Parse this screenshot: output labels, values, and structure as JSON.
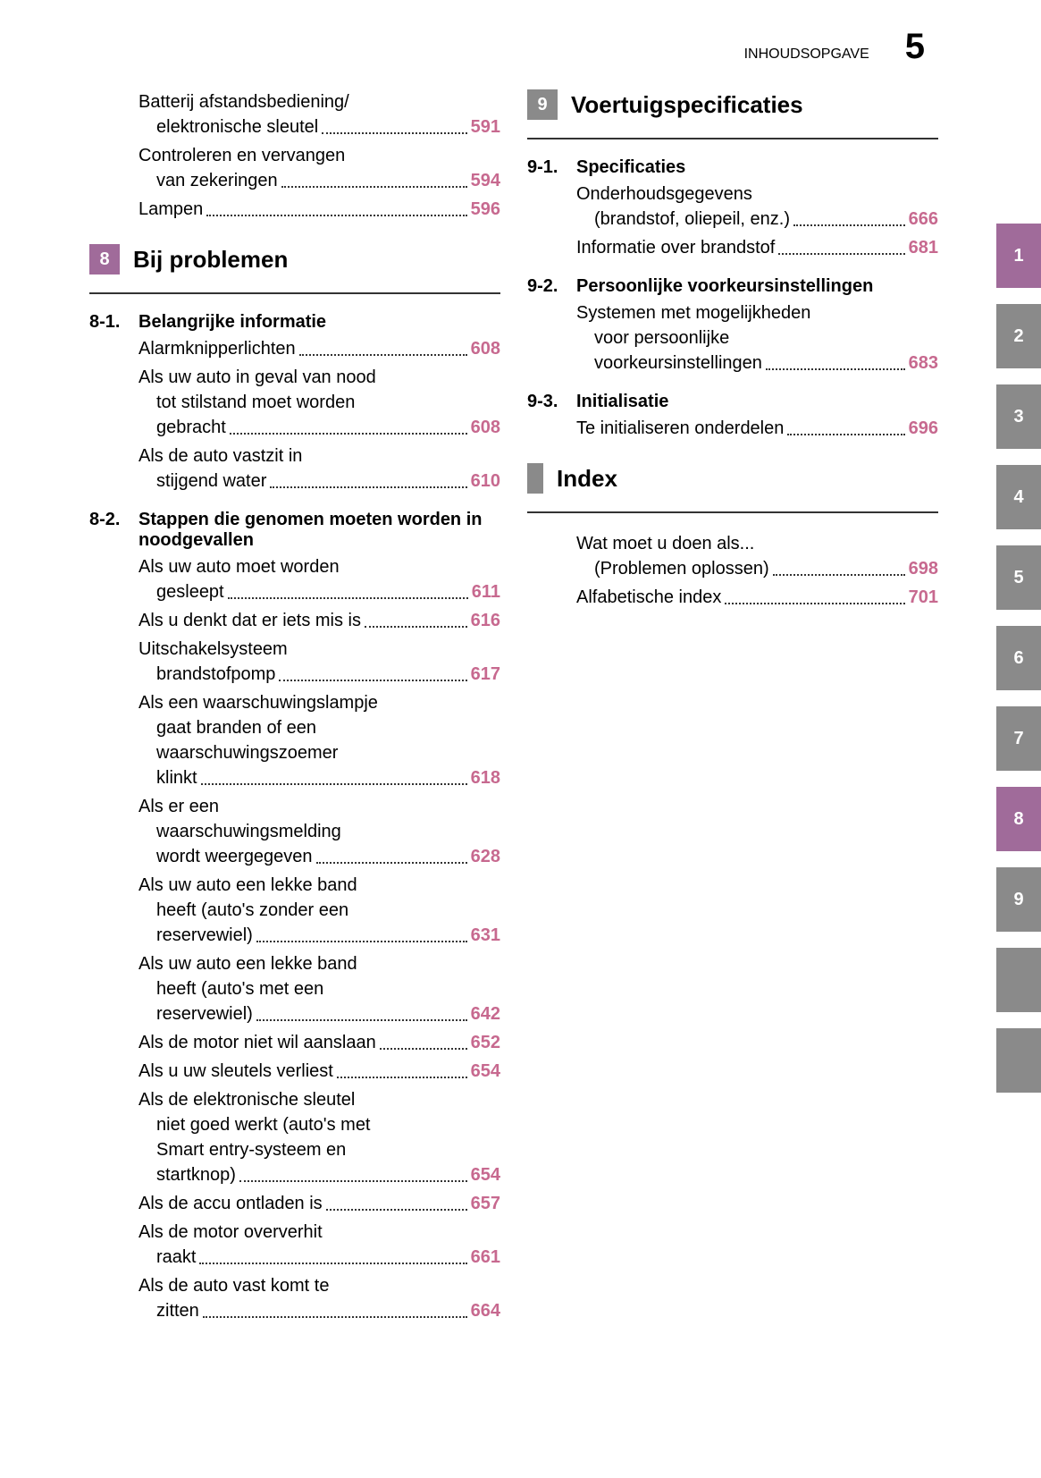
{
  "colors": {
    "purple": "#a06b9a",
    "gray": "#8a8a8a",
    "page_pink": "#c7698f",
    "text": "#222222"
  },
  "header": {
    "title": "INHOUDSOPGAVE",
    "page": "5"
  },
  "left": {
    "pre_entries": [
      {
        "lines": [
          "Batterij afstandsbediening/",
          "elektronische sleutel"
        ],
        "page": "591"
      },
      {
        "lines": [
          "Controleren en vervangen",
          "van zekeringen"
        ],
        "page": "594"
      },
      {
        "lines": [
          "Lampen"
        ],
        "page": "596"
      }
    ],
    "chapter8": {
      "num": "8",
      "title": "Bij problemen"
    },
    "s81": {
      "num": "8-1.",
      "title": "Belangrijke informatie",
      "entries": [
        {
          "lines": [
            "Alarmknipperlichten"
          ],
          "page": "608"
        },
        {
          "lines": [
            "Als uw auto in geval van nood",
            "tot stilstand moet worden",
            "gebracht"
          ],
          "page": "608"
        },
        {
          "lines": [
            "Als de auto vastzit in",
            "stijgend water"
          ],
          "page": "610"
        }
      ]
    },
    "s82": {
      "num": "8-2.",
      "title": "Stappen die genomen moeten worden in noodgevallen",
      "entries": [
        {
          "lines": [
            "Als uw auto moet worden",
            "gesleept"
          ],
          "page": "611"
        },
        {
          "lines": [
            "Als u denkt dat er iets mis is"
          ],
          "page": "616"
        },
        {
          "lines": [
            "Uitschakelsysteem",
            "brandstofpomp"
          ],
          "page": "617"
        },
        {
          "lines": [
            "Als een waarschuwingslampje",
            "gaat branden of een",
            "waarschuwingszoemer",
            "klinkt"
          ],
          "page": "618"
        },
        {
          "lines": [
            "Als er een",
            "waarschuwingsmelding",
            "wordt weergegeven"
          ],
          "page": "628"
        },
        {
          "lines": [
            "Als uw auto een lekke band",
            "heeft (auto's zonder een",
            "reservewiel)"
          ],
          "page": "631"
        },
        {
          "lines": [
            "Als uw auto een lekke band",
            "heeft (auto's met een",
            "reservewiel)"
          ],
          "page": "642"
        },
        {
          "lines": [
            "Als de motor niet wil aanslaan"
          ],
          "page": "652"
        },
        {
          "lines": [
            "Als u uw sleutels verliest"
          ],
          "page": "654"
        },
        {
          "lines": [
            "Als de elektronische sleutel",
            "niet goed werkt (auto's met",
            "Smart entry-systeem en",
            "startknop)"
          ],
          "page": "654"
        },
        {
          "lines": [
            "Als de accu ontladen is"
          ],
          "page": "657"
        },
        {
          "lines": [
            "Als de motor oververhit",
            "raakt"
          ],
          "page": "661"
        },
        {
          "lines": [
            "Als de auto vast komt te",
            "zitten"
          ],
          "page": "664"
        }
      ]
    }
  },
  "right": {
    "chapter9": {
      "num": "9",
      "title": "Voertuigspecificaties"
    },
    "s91": {
      "num": "9-1.",
      "title": "Specificaties",
      "entries": [
        {
          "lines": [
            "Onderhoudsgegevens",
            "(brandstof, oliepeil, enz.)"
          ],
          "page": "666"
        },
        {
          "lines": [
            "Informatie over brandstof"
          ],
          "page": "681"
        }
      ]
    },
    "s92": {
      "num": "9-2.",
      "title": "Persoonlijke voorkeursinstellingen",
      "entries": [
        {
          "lines": [
            "Systemen met mogelijkheden",
            "voor persoonlijke",
            "voorkeursinstellingen"
          ],
          "page": "683"
        }
      ]
    },
    "s93": {
      "num": "9-3.",
      "title": "Initialisatie",
      "entries": [
        {
          "lines": [
            "Te initialiseren onderdelen"
          ],
          "page": "696"
        }
      ]
    },
    "index": {
      "title": "Index",
      "entries": [
        {
          "lines": [
            "Wat moet u doen als...",
            "(Problemen oplossen)"
          ],
          "page": "698"
        },
        {
          "lines": [
            "Alfabetische index"
          ],
          "page": "701"
        }
      ]
    }
  },
  "tabs": [
    "1",
    "2",
    "3",
    "4",
    "5",
    "6",
    "7",
    "8",
    "9",
    "",
    ""
  ],
  "tab_styles": [
    "purple",
    "gray",
    "gray",
    "gray",
    "gray",
    "gray",
    "gray",
    "purple",
    "gray",
    "gray",
    "gray"
  ]
}
